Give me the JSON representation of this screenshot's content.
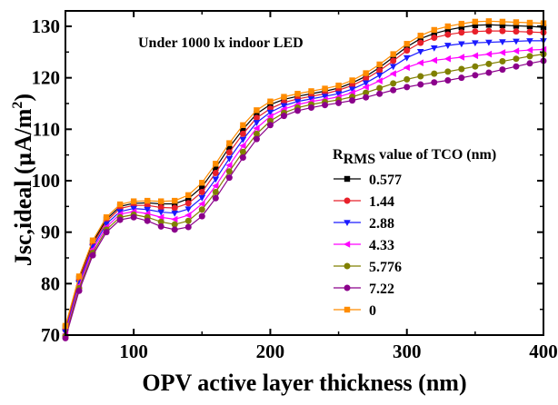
{
  "chart_data": {
    "type": "line",
    "annotation": "Under 1000 lx indoor LED",
    "xlabel": "OPV active layer thickness (nm)",
    "ylabel": {
      "main": "Jsc,ideal (",
      "mu": "μ",
      "unit": "A/m",
      "sup": "2",
      "close": ")"
    },
    "legend": {
      "title_main": "R",
      "title_sub": "RMS",
      "title_rest": " value of TCO (nm)",
      "placement": "right-middle"
    },
    "xlim": [
      50,
      400
    ],
    "ylim": [
      70,
      133
    ],
    "xticks": [
      {
        "value": 100,
        "label": "100"
      },
      {
        "value": 200,
        "label": "200"
      },
      {
        "value": 300,
        "label": "300"
      },
      {
        "value": 400,
        "label": "400"
      }
    ],
    "yticks": [
      {
        "value": 70,
        "label": "70"
      },
      {
        "value": 80,
        "label": "80"
      },
      {
        "value": 90,
        "label": "90"
      },
      {
        "value": 100,
        "label": "100"
      },
      {
        "value": 110,
        "label": "110"
      },
      {
        "value": 120,
        "label": "120"
      },
      {
        "value": 130,
        "label": "130"
      }
    ],
    "x": [
      50,
      60,
      70,
      80,
      90,
      100,
      110,
      120,
      130,
      140,
      150,
      160,
      170,
      180,
      190,
      200,
      210,
      220,
      230,
      240,
      250,
      260,
      270,
      280,
      290,
      300,
      310,
      320,
      330,
      340,
      350,
      360,
      370,
      380,
      390,
      400
    ],
    "series": [
      {
        "name": "0.577",
        "color": "#000000",
        "marker": "square",
        "values": [
          71.5,
          81.0,
          88.0,
          92.5,
          95.0,
          95.6,
          95.7,
          95.5,
          95.5,
          96.5,
          98.8,
          102.5,
          106.5,
          110.0,
          113.0,
          114.8,
          115.8,
          116.4,
          116.9,
          117.4,
          118.0,
          119.0,
          120.3,
          122.0,
          124.0,
          126.0,
          127.6,
          128.6,
          129.3,
          129.8,
          130.2,
          130.3,
          130.2,
          130.1,
          130.0,
          129.8
        ]
      },
      {
        "name": "1.44",
        "color": "#e8202a",
        "marker": "circle",
        "values": [
          71.0,
          80.6,
          87.6,
          92.1,
          94.6,
          95.2,
          95.2,
          94.8,
          94.7,
          95.6,
          97.8,
          101.5,
          105.5,
          109.1,
          112.2,
          114.0,
          115.2,
          115.9,
          116.4,
          116.9,
          117.6,
          118.5,
          119.8,
          121.4,
          123.3,
          125.3,
          126.8,
          127.8,
          128.4,
          128.8,
          129.0,
          129.1,
          129.1,
          129.0,
          128.9,
          128.8
        ]
      },
      {
        "name": "2.88",
        "color": "#1a1aff",
        "marker": "triangle-down",
        "values": [
          70.6,
          80.1,
          87.1,
          91.6,
          94.0,
          94.6,
          94.4,
          93.9,
          93.7,
          94.5,
          96.7,
          100.3,
          104.3,
          108.0,
          111.3,
          113.3,
          114.6,
          115.4,
          115.9,
          116.4,
          116.9,
          117.8,
          119.0,
          120.5,
          122.2,
          123.9,
          125.1,
          125.8,
          126.3,
          126.6,
          126.8,
          126.9,
          127.0,
          127.1,
          127.2,
          127.2
        ]
      },
      {
        "name": "4.33",
        "color": "#ff00ff",
        "marker": "triangle-left",
        "values": [
          70.2,
          79.6,
          86.6,
          91.0,
          93.5,
          94.0,
          93.6,
          92.9,
          92.5,
          93.3,
          95.5,
          99.0,
          103.0,
          106.8,
          110.2,
          112.5,
          113.9,
          114.8,
          115.4,
          115.8,
          116.3,
          117.1,
          118.2,
          119.4,
          120.8,
          122.0,
          122.9,
          123.4,
          123.7,
          124.0,
          124.3,
          124.6,
          124.9,
          125.2,
          125.4,
          125.5
        ]
      },
      {
        "name": "5.776",
        "color": "#808000",
        "marker": "circle",
        "values": [
          69.8,
          79.1,
          86.0,
          90.5,
          92.9,
          93.4,
          92.9,
          92.0,
          91.5,
          92.2,
          94.4,
          97.8,
          101.8,
          105.6,
          109.1,
          111.6,
          113.2,
          114.2,
          114.8,
          115.3,
          115.7,
          116.3,
          117.1,
          118.0,
          118.9,
          119.7,
          120.3,
          120.8,
          121.2,
          121.7,
          122.2,
          122.7,
          123.2,
          123.7,
          124.2,
          124.6
        ]
      },
      {
        "name": "7.22",
        "color": "#8b008b",
        "marker": "circle",
        "values": [
          69.4,
          78.6,
          85.5,
          90.0,
          92.4,
          92.9,
          92.2,
          91.1,
          90.5,
          91.0,
          93.1,
          96.6,
          100.6,
          104.5,
          108.1,
          110.8,
          112.6,
          113.6,
          114.2,
          114.7,
          115.1,
          115.6,
          116.2,
          116.9,
          117.6,
          118.2,
          118.7,
          119.1,
          119.5,
          120.0,
          120.5,
          121.0,
          121.6,
          122.2,
          122.8,
          123.3
        ]
      },
      {
        "name": "0",
        "color": "#ff8c00",
        "marker": "square",
        "values": [
          71.8,
          81.4,
          88.4,
          92.9,
          95.4,
          96.0,
          96.1,
          96.0,
          96.1,
          97.2,
          99.6,
          103.3,
          107.3,
          110.8,
          113.7,
          115.4,
          116.3,
          116.9,
          117.4,
          117.9,
          118.5,
          119.5,
          120.9,
          122.6,
          124.6,
          126.6,
          128.2,
          129.3,
          130.0,
          130.5,
          130.9,
          131.0,
          130.9,
          130.8,
          130.7,
          130.6
        ]
      }
    ]
  }
}
